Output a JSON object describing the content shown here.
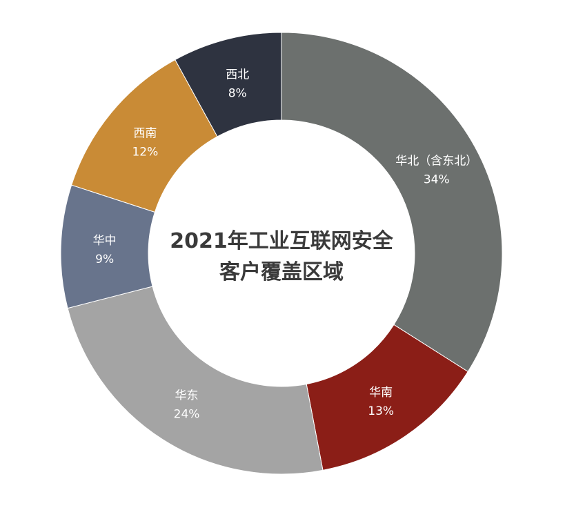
{
  "chart_data": {
    "type": "pie",
    "title_lines": [
      "2021年工业互联网安全",
      "客户覆盖区域"
    ],
    "slices": [
      {
        "name": "华北（含东北）",
        "value": 34,
        "label": "34%",
        "color": "#6c706e"
      },
      {
        "name": "华南",
        "value": 13,
        "label": "13%",
        "color": "#8b1e17"
      },
      {
        "name": "华东",
        "value": 24,
        "label": "24%",
        "color": "#a4a4a4"
      },
      {
        "name": "华中",
        "value": 9,
        "label": "9%",
        "color": "#68748c"
      },
      {
        "name": "西南",
        "value": 12,
        "label": "12%",
        "color": "#c98b36"
      },
      {
        "name": "西北",
        "value": 8,
        "label": "8%",
        "color": "#2e3340"
      }
    ]
  }
}
